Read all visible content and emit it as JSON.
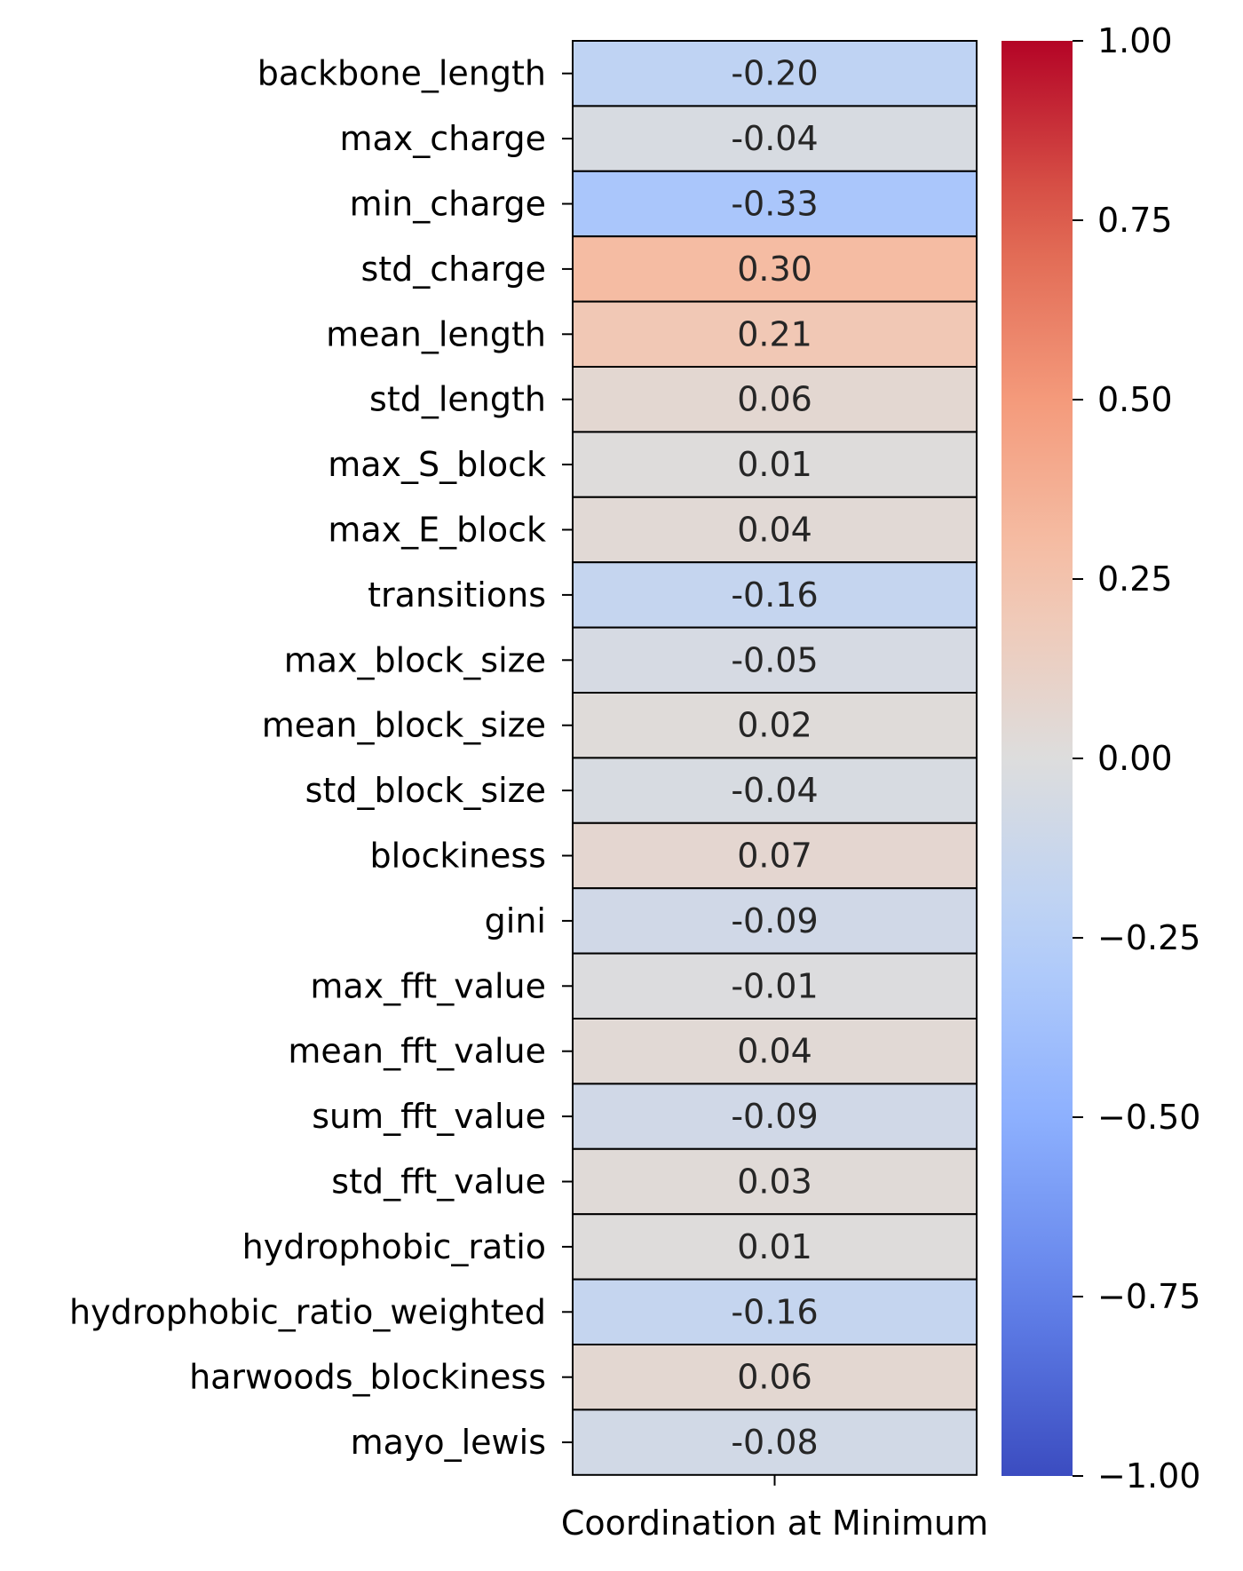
{
  "chart_data": {
    "type": "heatmap",
    "title": "",
    "xlabel": "",
    "ylabel": "",
    "columns": [
      "Coordination at Minimum"
    ],
    "rows": [
      "backbone_length",
      "max_charge",
      "min_charge",
      "std_charge",
      "mean_length",
      "std_length",
      "max_S_block",
      "max_E_block",
      "transitions",
      "max_block_size",
      "mean_block_size",
      "std_block_size",
      "blockiness",
      "gini",
      "max_fft_value",
      "mean_fft_value",
      "sum_fft_value",
      "std_fft_value",
      "hydrophobic_ratio",
      "hydrophobic_ratio_weighted",
      "harwoods_blockiness",
      "mayo_lewis"
    ],
    "values": [
      -0.2,
      -0.04,
      -0.33,
      0.3,
      0.21,
      0.06,
      0.01,
      0.04,
      -0.16,
      -0.05,
      0.02,
      -0.04,
      0.07,
      -0.09,
      -0.01,
      0.04,
      -0.09,
      0.03,
      0.01,
      -0.16,
      0.06,
      -0.08
    ],
    "value_labels": [
      "-0.20",
      "-0.04",
      "-0.33",
      "0.30",
      "0.21",
      "0.06",
      "0.01",
      "0.04",
      "-0.16",
      "-0.05",
      "0.02",
      "-0.04",
      "0.07",
      "-0.09",
      "-0.01",
      "0.04",
      "-0.09",
      "0.03",
      "0.01",
      "-0.16",
      "0.06",
      "-0.08"
    ],
    "colormap": "coolwarm",
    "vmin": -1.0,
    "vmax": 1.0,
    "colorbar_ticks": [
      1.0,
      0.75,
      0.5,
      0.25,
      0.0,
      -0.25,
      -0.5,
      -0.75,
      -1.0
    ],
    "colorbar_tick_labels": [
      "1.00",
      "0.75",
      "0.50",
      "0.25",
      "0.00",
      "−0.25",
      "−0.50",
      "−0.75",
      "−1.00"
    ],
    "cell_border_color": "#000000",
    "legend": "colorbar-right"
  }
}
